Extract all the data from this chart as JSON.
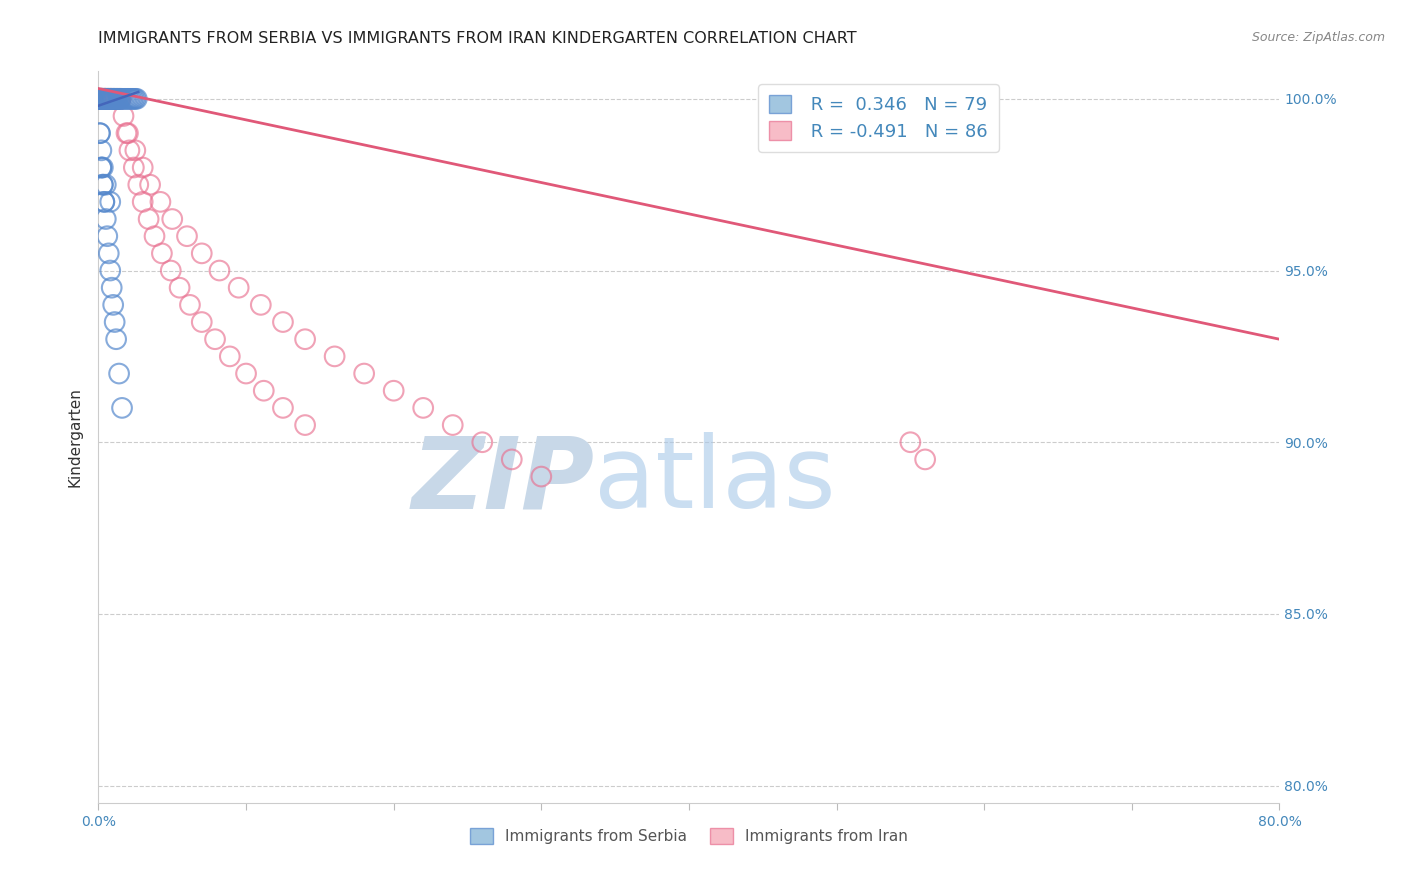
{
  "title": "IMMIGRANTS FROM SERBIA VS IMMIGRANTS FROM IRAN KINDERGARTEN CORRELATION CHART",
  "source": "Source: ZipAtlas.com",
  "ylabel": "Kindergarten",
  "xlim": [
    0.0,
    0.8
  ],
  "ylim": [
    0.795,
    1.008
  ],
  "yticks": [
    0.8,
    0.85,
    0.9,
    0.95,
    1.0
  ],
  "ytick_labels": [
    "80.0%",
    "85.0%",
    "90.0%",
    "95.0%",
    "100.0%"
  ],
  "xticks": [
    0.0,
    0.1,
    0.2,
    0.3,
    0.4,
    0.5,
    0.6,
    0.7,
    0.8
  ],
  "xtick_labels": [
    "0.0%",
    "",
    "",
    "",
    "",
    "",
    "",
    "",
    "80.0%"
  ],
  "serbia_R": 0.346,
  "serbia_N": 79,
  "iran_R": -0.491,
  "iran_N": 86,
  "serbia_color": "#7BAFD4",
  "iran_color": "#F4A0B0",
  "serbia_edge_color": "#5588CC",
  "iran_edge_color": "#E87090",
  "serbia_trend_color": "#4466BB",
  "iran_trend_color": "#E05878",
  "background_color": "#FFFFFF",
  "watermark_ZIP_color": "#C8D8E8",
  "watermark_atlas_color": "#A8C8E8",
  "grid_color": "#CCCCCC",
  "tick_color": "#4488BB",
  "axis_label_color": "#333333",
  "title_fontsize": 11.5,
  "label_fontsize": 11,
  "tick_fontsize": 10,
  "legend_R_color": "#4488BB",
  "serbia_x": [
    0.001,
    0.001,
    0.001,
    0.002,
    0.002,
    0.002,
    0.002,
    0.002,
    0.003,
    0.003,
    0.003,
    0.003,
    0.003,
    0.004,
    0.004,
    0.004,
    0.004,
    0.005,
    0.005,
    0.005,
    0.005,
    0.006,
    0.006,
    0.006,
    0.007,
    0.007,
    0.007,
    0.008,
    0.008,
    0.008,
    0.009,
    0.009,
    0.009,
    0.01,
    0.01,
    0.01,
    0.011,
    0.011,
    0.012,
    0.012,
    0.013,
    0.013,
    0.014,
    0.014,
    0.015,
    0.015,
    0.016,
    0.017,
    0.018,
    0.019,
    0.02,
    0.021,
    0.022,
    0.023,
    0.024,
    0.025,
    0.026,
    0.001,
    0.001,
    0.002,
    0.002,
    0.003,
    0.003,
    0.004,
    0.004,
    0.005,
    0.006,
    0.007,
    0.008,
    0.009,
    0.01,
    0.011,
    0.012,
    0.014,
    0.016,
    0.002,
    0.003,
    0.005,
    0.008
  ],
  "serbia_y": [
    1.0,
    1.0,
    1.0,
    1.0,
    1.0,
    1.0,
    1.0,
    1.0,
    1.0,
    1.0,
    1.0,
    1.0,
    1.0,
    1.0,
    1.0,
    1.0,
    1.0,
    1.0,
    1.0,
    1.0,
    1.0,
    1.0,
    1.0,
    1.0,
    1.0,
    1.0,
    1.0,
    1.0,
    1.0,
    1.0,
    1.0,
    1.0,
    1.0,
    1.0,
    1.0,
    1.0,
    1.0,
    1.0,
    1.0,
    1.0,
    1.0,
    1.0,
    1.0,
    1.0,
    1.0,
    1.0,
    1.0,
    1.0,
    1.0,
    1.0,
    1.0,
    1.0,
    1.0,
    1.0,
    1.0,
    1.0,
    1.0,
    0.99,
    0.99,
    0.98,
    0.98,
    0.975,
    0.975,
    0.97,
    0.97,
    0.965,
    0.96,
    0.955,
    0.95,
    0.945,
    0.94,
    0.935,
    0.93,
    0.92,
    0.91,
    0.985,
    0.98,
    0.975,
    0.97
  ],
  "iran_x": [
    0.001,
    0.001,
    0.001,
    0.001,
    0.001,
    0.002,
    0.002,
    0.002,
    0.002,
    0.002,
    0.003,
    0.003,
    0.003,
    0.003,
    0.003,
    0.004,
    0.004,
    0.004,
    0.004,
    0.005,
    0.005,
    0.005,
    0.005,
    0.006,
    0.006,
    0.006,
    0.007,
    0.007,
    0.007,
    0.008,
    0.008,
    0.008,
    0.009,
    0.009,
    0.01,
    0.01,
    0.011,
    0.011,
    0.012,
    0.012,
    0.013,
    0.014,
    0.015,
    0.015,
    0.017,
    0.019,
    0.021,
    0.024,
    0.027,
    0.03,
    0.034,
    0.038,
    0.043,
    0.049,
    0.055,
    0.062,
    0.07,
    0.079,
    0.089,
    0.1,
    0.112,
    0.125,
    0.14,
    0.02,
    0.025,
    0.03,
    0.035,
    0.042,
    0.05,
    0.06,
    0.07,
    0.082,
    0.095,
    0.11,
    0.125,
    0.14,
    0.16,
    0.18,
    0.2,
    0.22,
    0.24,
    0.26,
    0.28,
    0.3,
    0.55,
    0.56
  ],
  "iran_y": [
    1.0,
    1.0,
    1.0,
    1.0,
    1.0,
    1.0,
    1.0,
    1.0,
    1.0,
    1.0,
    1.0,
    1.0,
    1.0,
    1.0,
    1.0,
    1.0,
    1.0,
    1.0,
    1.0,
    1.0,
    1.0,
    1.0,
    1.0,
    1.0,
    1.0,
    1.0,
    1.0,
    1.0,
    1.0,
    1.0,
    1.0,
    1.0,
    1.0,
    1.0,
    1.0,
    1.0,
    1.0,
    1.0,
    1.0,
    1.0,
    1.0,
    1.0,
    1.0,
    1.0,
    0.995,
    0.99,
    0.985,
    0.98,
    0.975,
    0.97,
    0.965,
    0.96,
    0.955,
    0.95,
    0.945,
    0.94,
    0.935,
    0.93,
    0.925,
    0.92,
    0.915,
    0.91,
    0.905,
    0.99,
    0.985,
    0.98,
    0.975,
    0.97,
    0.965,
    0.96,
    0.955,
    0.95,
    0.945,
    0.94,
    0.935,
    0.93,
    0.925,
    0.92,
    0.915,
    0.91,
    0.905,
    0.9,
    0.895,
    0.89,
    0.9,
    0.895
  ],
  "iran_trend_x": [
    0.0,
    0.8
  ],
  "iran_trend_y": [
    1.003,
    0.93
  ],
  "serbia_trend_x": [
    0.0,
    0.027
  ],
  "serbia_trend_y": [
    0.998,
    1.002
  ]
}
